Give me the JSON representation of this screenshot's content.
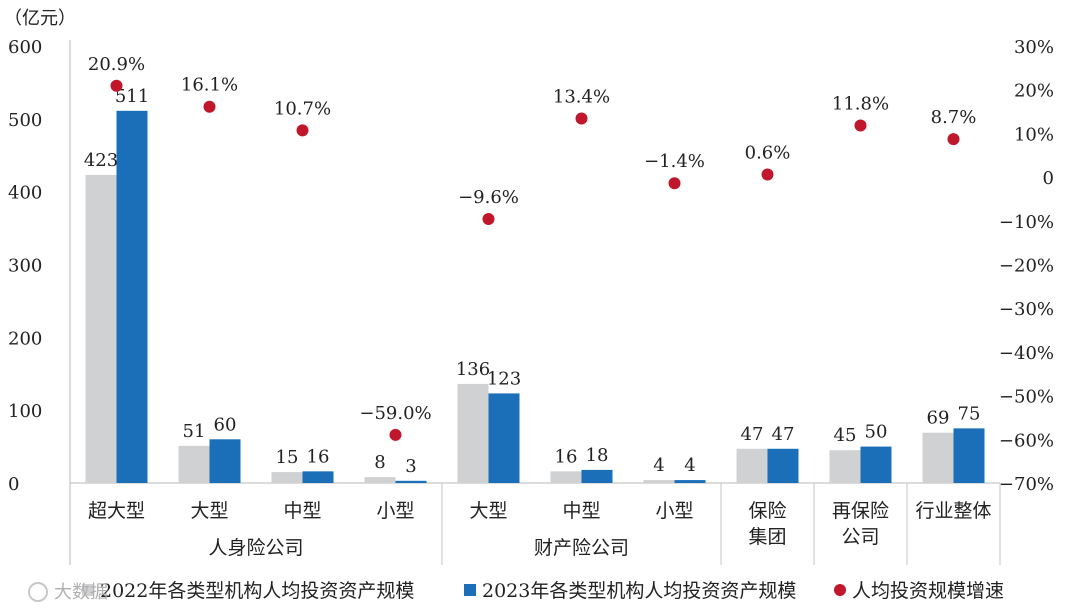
{
  "chart_data": {
    "type": "bar",
    "unit_label": "（亿元）",
    "left_axis": {
      "min": 0,
      "max": 600,
      "ticks": [
        0,
        100,
        200,
        300,
        400,
        500,
        600
      ]
    },
    "right_axis": {
      "min": -70,
      "max": 30,
      "ticks": [
        "30%",
        "20%",
        "10%",
        "0",
        "−10%",
        "−20%",
        "−30%",
        "−40%",
        "−50%",
        "−60%",
        "−70%"
      ]
    },
    "categories": [
      "超大型",
      "大型",
      "中型",
      "小型",
      "大型",
      "中型",
      "小型",
      "保险集团",
      "再保险公司",
      "行业整体"
    ],
    "category_lines": [
      [
        "超大型"
      ],
      [
        "大型"
      ],
      [
        "中型"
      ],
      [
        "小型"
      ],
      [
        "大型"
      ],
      [
        "中型"
      ],
      [
        "小型"
      ],
      [
        "保险",
        "集团"
      ],
      [
        "再保险",
        "公司"
      ],
      [
        "行业整体"
      ]
    ],
    "groups": [
      {
        "label": "人身险公司",
        "span": [
          0,
          3
        ]
      },
      {
        "label": "财产险公司",
        "span": [
          4,
          6
        ]
      }
    ],
    "series": [
      {
        "name": "2022年各类型机构人均投资资产规模",
        "kind": "bar",
        "axis": "left",
        "color": "#d0d1d3",
        "values": [
          423,
          51,
          15,
          8,
          136,
          16,
          4,
          47,
          45,
          69
        ]
      },
      {
        "name": "2023年各类型机构人均投资资产规模",
        "kind": "bar",
        "axis": "left",
        "color": "#1a6fb8",
        "values": [
          511,
          60,
          16,
          3,
          123,
          18,
          4,
          47,
          50,
          75
        ]
      },
      {
        "name": "人均投资规模增速",
        "kind": "scatter",
        "axis": "right",
        "color": "#c0172c",
        "values": [
          20.9,
          16.1,
          10.7,
          -59.0,
          -9.6,
          13.4,
          -1.4,
          0.6,
          11.8,
          8.7
        ],
        "labels": [
          "20.9%",
          "16.1%",
          "10.7%",
          "−59.0%",
          "−9.6%",
          "13.4%",
          "−1.4%",
          "0.6%",
          "11.8%",
          "8.7%"
        ]
      }
    ],
    "legend_position": "bottom"
  },
  "watermark": "大数据"
}
